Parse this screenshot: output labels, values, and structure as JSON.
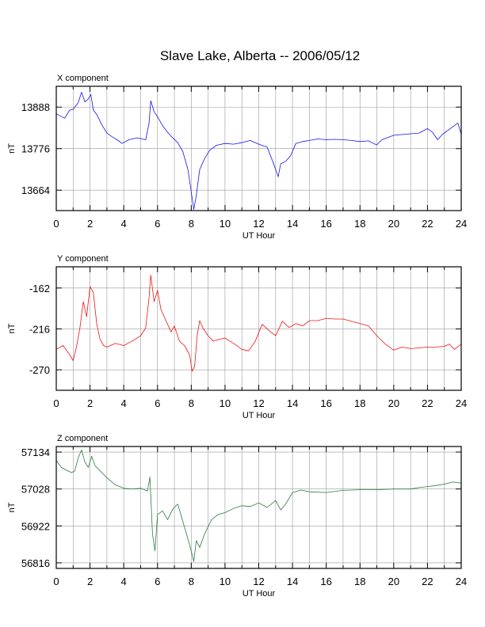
{
  "title": "Slave Lake, Alberta -- 2006/05/12",
  "chart_data": [
    {
      "type": "line",
      "panel_title": "X component",
      "xlabel": "UT Hour",
      "ylabel": "nT",
      "xlim": [
        0,
        24
      ],
      "ylim": [
        13609,
        13944
      ],
      "xticks": [
        0,
        2,
        4,
        6,
        8,
        10,
        12,
        14,
        16,
        18,
        20,
        22,
        24
      ],
      "yticks": [
        13664,
        13776,
        13888
      ],
      "grid": true,
      "color": "#1414ee",
      "series": [
        {
          "x": [
            0,
            0.5,
            0.8,
            1.0,
            1.3,
            1.5,
            1.7,
            1.9,
            2.05,
            2.2,
            2.4,
            2.7,
            3.0,
            3.3,
            3.6,
            3.9,
            4.3,
            4.8,
            5.3,
            5.5,
            5.6,
            5.8,
            6.0,
            6.3,
            6.6,
            6.9,
            7.2,
            7.5,
            7.8,
            8.0,
            8.15,
            8.3,
            8.5,
            8.8,
            9.1,
            9.5,
            10.0,
            10.5,
            11.0,
            11.5,
            12.0,
            12.5,
            12.8,
            13.0,
            13.15,
            13.3,
            13.6,
            13.9,
            14.2,
            14.6,
            15.0,
            15.5,
            16.0,
            16.5,
            17.0,
            17.5,
            18.0,
            18.5,
            18.8,
            19.0,
            19.3,
            19.6,
            20.0,
            20.5,
            21.0,
            21.5,
            22.0,
            22.3,
            22.6,
            22.9,
            23.2,
            23.5,
            23.8,
            24.0
          ],
          "y": [
            13870,
            13858,
            13880,
            13882,
            13900,
            13928,
            13902,
            13910,
            13922,
            13880,
            13868,
            13840,
            13818,
            13808,
            13800,
            13790,
            13800,
            13805,
            13800,
            13845,
            13905,
            13875,
            13862,
            13838,
            13820,
            13805,
            13792,
            13768,
            13720,
            13660,
            13612,
            13650,
            13720,
            13750,
            13772,
            13785,
            13790,
            13788,
            13792,
            13798,
            13788,
            13780,
            13745,
            13720,
            13700,
            13735,
            13742,
            13758,
            13790,
            13795,
            13798,
            13802,
            13800,
            13801,
            13800,
            13798,
            13795,
            13797,
            13790,
            13786,
            13800,
            13805,
            13812,
            13814,
            13816,
            13818,
            13830,
            13820,
            13800,
            13815,
            13825,
            13835,
            13845,
            13815
          ]
        }
      ]
    },
    {
      "type": "line",
      "panel_title": "Y component",
      "xlabel": "UT Hour",
      "ylabel": "nT",
      "xlim": [
        0,
        24
      ],
      "ylim": [
        -297,
        -134
      ],
      "xticks": [
        0,
        2,
        4,
        6,
        8,
        10,
        12,
        14,
        16,
        18,
        20,
        22,
        24
      ],
      "yticks": [
        -270,
        -216,
        -162
      ],
      "grid": true,
      "color": "#ee1414",
      "series": [
        {
          "x": [
            0,
            0.4,
            0.8,
            1.0,
            1.2,
            1.4,
            1.6,
            1.8,
            2.0,
            2.2,
            2.4,
            2.6,
            2.8,
            3.0,
            3.5,
            4.0,
            4.5,
            5.0,
            5.3,
            5.5,
            5.6,
            5.8,
            6.0,
            6.2,
            6.5,
            6.8,
            7.0,
            7.3,
            7.6,
            7.9,
            8.05,
            8.2,
            8.35,
            8.5,
            8.7,
            9.0,
            9.3,
            9.6,
            10.0,
            10.5,
            11.0,
            11.4,
            11.8,
            12.2,
            12.6,
            13.0,
            13.4,
            13.8,
            14.2,
            14.6,
            15.0,
            15.5,
            16.0,
            16.5,
            17.0,
            17.5,
            18.0,
            18.5,
            19.0,
            19.5,
            20.0,
            20.5,
            21.0,
            21.5,
            22.0,
            22.5,
            23.0,
            23.3,
            23.6,
            24.0
          ],
          "y": [
            -243,
            -238,
            -250,
            -258,
            -240,
            -215,
            -180,
            -200,
            -160,
            -168,
            -210,
            -230,
            -238,
            -240,
            -235,
            -238,
            -232,
            -225,
            -215,
            -175,
            -145,
            -180,
            -165,
            -190,
            -205,
            -220,
            -212,
            -232,
            -238,
            -250,
            -272,
            -265,
            -225,
            -205,
            -215,
            -225,
            -232,
            -230,
            -228,
            -235,
            -243,
            -245,
            -232,
            -210,
            -218,
            -225,
            -206,
            -214,
            -209,
            -212,
            -205,
            -205,
            -202,
            -203,
            -203,
            -206,
            -209,
            -212,
            -225,
            -236,
            -244,
            -240,
            -242,
            -241,
            -240,
            -240,
            -239,
            -236,
            -243,
            -236
          ]
        }
      ]
    },
    {
      "type": "line",
      "panel_title": "Z component",
      "xlabel": "UT Hour",
      "ylabel": "nT",
      "xlim": [
        0,
        24
      ],
      "ylim": [
        56800,
        57150
      ],
      "xticks": [
        0,
        2,
        4,
        6,
        8,
        10,
        12,
        14,
        16,
        18,
        20,
        22,
        24
      ],
      "yticks": [
        56816,
        56922,
        57028,
        57134
      ],
      "grid": true,
      "color": "#2a7a40",
      "series": [
        {
          "x": [
            0,
            0.3,
            0.6,
            0.9,
            1.1,
            1.3,
            1.5,
            1.7,
            1.9,
            2.1,
            2.3,
            2.6,
            3.0,
            3.5,
            4.0,
            4.5,
            5.0,
            5.4,
            5.55,
            5.7,
            5.85,
            6.0,
            6.3,
            6.6,
            6.9,
            7.2,
            7.5,
            7.8,
            8.0,
            8.15,
            8.3,
            8.5,
            8.8,
            9.2,
            9.6,
            10.0,
            10.5,
            11.0,
            11.5,
            12.0,
            12.5,
            13.0,
            13.3,
            13.6,
            14.0,
            14.5,
            15.0,
            16.0,
            17.0,
            18.0,
            19.0,
            20.0,
            21.0,
            21.5,
            22.0,
            22.5,
            23.0,
            23.5,
            24.0
          ],
          "y": [
            57110,
            57090,
            57082,
            57075,
            57080,
            57118,
            57140,
            57105,
            57090,
            57122,
            57095,
            57080,
            57060,
            57040,
            57030,
            57028,
            57030,
            57022,
            57062,
            56900,
            56850,
            56955,
            56965,
            56940,
            56970,
            56985,
            56935,
            56885,
            56850,
            56820,
            56880,
            56860,
            56900,
            56940,
            56955,
            56960,
            56972,
            56980,
            56978,
            56988,
            56975,
            56995,
            56968,
            56985,
            57018,
            57025,
            57020,
            57018,
            57024,
            57026,
            57026,
            57028,
            57028,
            57032,
            57035,
            57038,
            57042,
            57048,
            57045
          ]
        }
      ]
    }
  ]
}
